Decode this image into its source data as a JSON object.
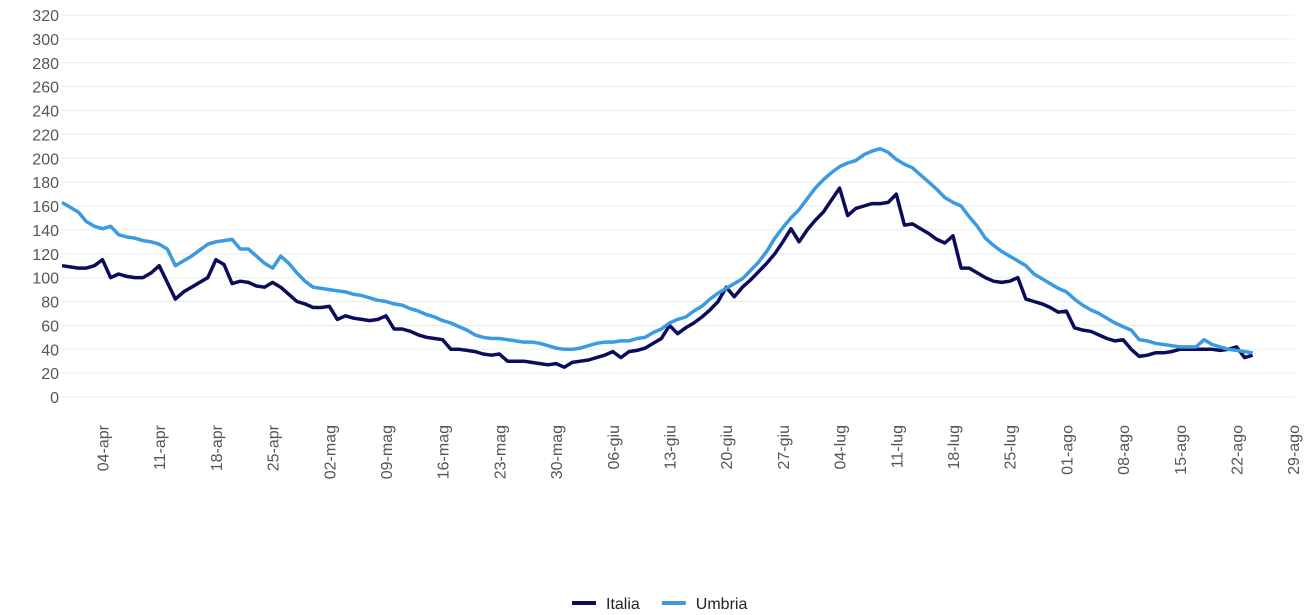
{
  "chart_data": {
    "type": "line",
    "categories": [
      null,
      null,
      null,
      null,
      null,
      "04-apr",
      null,
      null,
      null,
      null,
      null,
      null,
      "11-apr",
      null,
      null,
      null,
      null,
      null,
      null,
      "18-apr",
      null,
      null,
      null,
      null,
      null,
      null,
      "25-apr",
      null,
      null,
      null,
      null,
      null,
      null,
      "02-mag",
      null,
      null,
      null,
      null,
      null,
      null,
      "09-mag",
      null,
      null,
      null,
      null,
      null,
      null,
      "16-mag",
      null,
      null,
      null,
      null,
      null,
      null,
      "23-mag",
      null,
      null,
      null,
      null,
      null,
      null,
      "30-mag",
      null,
      null,
      null,
      null,
      null,
      null,
      "06-giu",
      null,
      null,
      null,
      null,
      null,
      null,
      "13-giu",
      null,
      null,
      null,
      null,
      null,
      null,
      "20-giu",
      null,
      null,
      null,
      null,
      null,
      null,
      "27-giu",
      null,
      null,
      null,
      null,
      null,
      null,
      "04-lug",
      null,
      null,
      null,
      null,
      null,
      null,
      "11-lug",
      null,
      null,
      null,
      null,
      null,
      null,
      "18-lug",
      null,
      null,
      null,
      null,
      null,
      null,
      "25-lug",
      null,
      null,
      null,
      null,
      null,
      null,
      "01-ago",
      null,
      null,
      null,
      null,
      null,
      null,
      "08-ago",
      null,
      null,
      null,
      null,
      null,
      null,
      "15-ago",
      null,
      null,
      null,
      null,
      null,
      null,
      "22-ago",
      null,
      null,
      null,
      null,
      null,
      null,
      "29-ago"
    ],
    "series": [
      {
        "name": "Italia",
        "color": "#0c0c5c",
        "values": [
          110,
          109,
          108,
          108,
          110,
          115,
          100,
          103,
          101,
          100,
          100,
          104,
          110,
          96,
          82,
          88,
          92,
          96,
          100,
          115,
          111,
          95,
          97,
          96,
          93,
          92,
          96,
          92,
          86,
          80,
          78,
          75,
          75,
          76,
          65,
          68,
          66,
          65,
          64,
          65,
          68,
          57,
          57,
          55,
          52,
          50,
          49,
          48,
          40,
          40,
          39,
          38,
          36,
          35,
          36,
          30,
          30,
          30,
          29,
          28,
          27,
          28,
          25,
          29,
          30,
          31,
          33,
          35,
          38,
          33,
          38,
          39,
          41,
          45,
          49,
          60,
          53,
          58,
          62,
          67,
          73,
          80,
          92,
          84,
          92,
          98,
          105,
          112,
          120,
          130,
          141,
          130,
          140,
          148,
          155,
          165,
          175,
          152,
          158,
          160,
          162,
          162,
          163,
          170,
          144,
          145,
          141,
          137,
          132,
          129,
          135,
          108,
          108,
          104,
          100,
          97,
          96,
          97,
          100,
          82,
          80,
          78,
          75,
          71,
          72,
          58,
          56,
          55,
          52,
          49,
          47,
          48,
          40,
          34,
          35,
          37,
          37,
          38,
          40,
          40,
          40,
          40,
          40,
          39,
          40,
          42,
          33,
          35,
          null,
          null,
          null,
          null,
          null
        ]
      },
      {
        "name": "Umbria",
        "color": "#3a9be2",
        "values": [
          163,
          159,
          155,
          147,
          143,
          141,
          143,
          136,
          134,
          133,
          131,
          130,
          128,
          124,
          110,
          114,
          118,
          123,
          128,
          130,
          131,
          132,
          124,
          124,
          118,
          112,
          108,
          118,
          112,
          104,
          97,
          92,
          91,
          90,
          89,
          88,
          86,
          85,
          83,
          81,
          80,
          78,
          77,
          74,
          72,
          69,
          67,
          64,
          62,
          59,
          56,
          52,
          50,
          49,
          49,
          48,
          47,
          46,
          46,
          45,
          43,
          41,
          40,
          40,
          41,
          43,
          45,
          46,
          46,
          47,
          47,
          49,
          50,
          54,
          57,
          62,
          65,
          67,
          72,
          76,
          82,
          87,
          91,
          95,
          99,
          106,
          113,
          122,
          133,
          142,
          150,
          157,
          166,
          175,
          182,
          188,
          193,
          196,
          198,
          203,
          206,
          208,
          205,
          199,
          195,
          192,
          186,
          180,
          174,
          167,
          163,
          160,
          151,
          143,
          133,
          127,
          122,
          118,
          114,
          110,
          103,
          99,
          95,
          91,
          88,
          82,
          77,
          73,
          70,
          66,
          62,
          59,
          56,
          48,
          47,
          45,
          44,
          43,
          42,
          42,
          42,
          48,
          44,
          42,
          40,
          39,
          38,
          37,
          null,
          null,
          null,
          null,
          null
        ]
      }
    ],
    "ylim": [
      0,
      320
    ],
    "yticks": [
      0,
      20,
      40,
      60,
      80,
      100,
      120,
      140,
      160,
      180,
      200,
      220,
      240,
      260,
      280,
      300,
      320
    ],
    "grid": true,
    "legend": "bottom"
  }
}
